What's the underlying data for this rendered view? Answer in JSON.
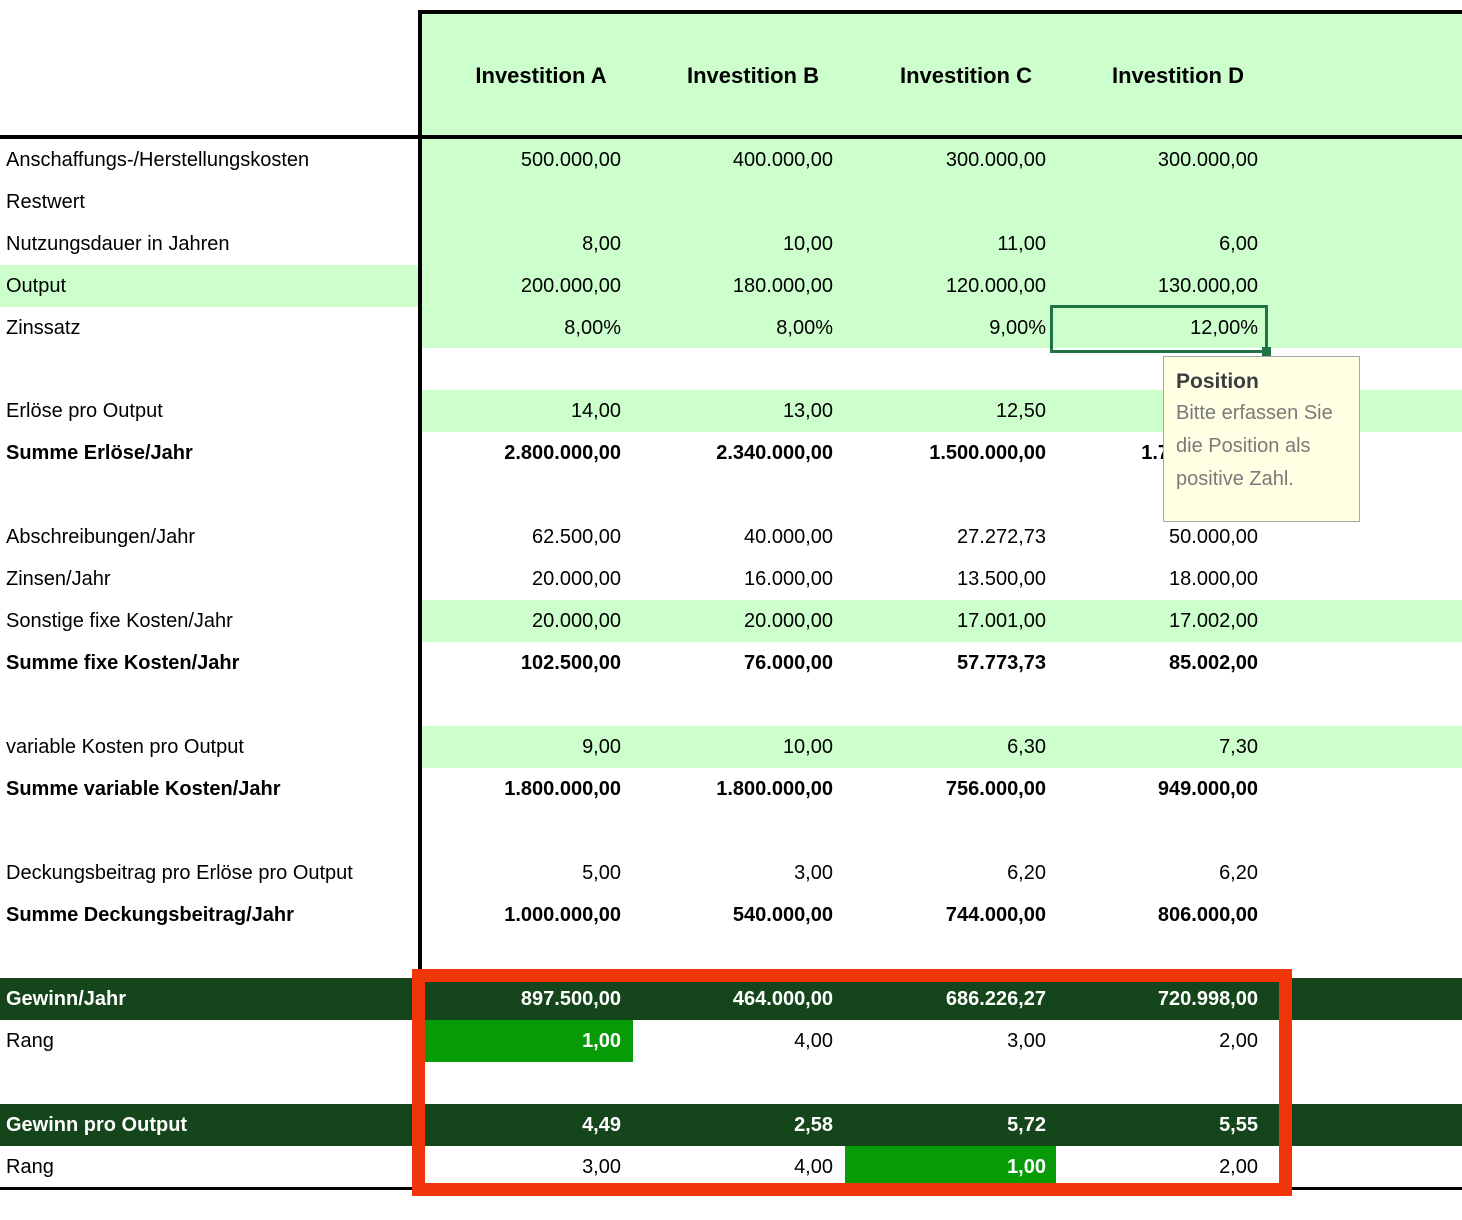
{
  "header": {
    "columns": [
      "Investition A",
      "Investition B",
      "Investition C",
      "Investition D"
    ]
  },
  "rows": [
    {
      "label": "Anschaffungs-/Herstellungskosten",
      "values": [
        "500.000,00",
        "400.000,00",
        "300.000,00",
        "300.000,00"
      ]
    },
    {
      "label": "Restwert",
      "values": [
        "",
        "",
        "",
        ""
      ]
    },
    {
      "label": "Nutzungsdauer in Jahren",
      "values": [
        "8,00",
        "10,00",
        "11,00",
        "6,00"
      ]
    },
    {
      "label": "Output",
      "values": [
        "200.000,00",
        "180.000,00",
        "120.000,00",
        "130.000,00"
      ]
    },
    {
      "label": "Zinssatz",
      "values": [
        "8,00%",
        "8,00%",
        "9,00%",
        "12,00%"
      ]
    },
    {
      "label": "Erlöse pro Output",
      "values": [
        "14,00",
        "13,00",
        "12,50",
        ""
      ]
    },
    {
      "label": "Summe Erlöse/Jahr",
      "values": [
        "2.800.000,00",
        "2.340.000,00",
        "1.500.000,00",
        "1.755.000,00"
      ]
    },
    {
      "label": "Abschreibungen/Jahr",
      "values": [
        "62.500,00",
        "40.000,00",
        "27.272,73",
        "50.000,00"
      ]
    },
    {
      "label": "Zinsen/Jahr",
      "values": [
        "20.000,00",
        "16.000,00",
        "13.500,00",
        "18.000,00"
      ]
    },
    {
      "label": "Sonstige fixe Kosten/Jahr",
      "values": [
        "20.000,00",
        "20.000,00",
        "17.001,00",
        "17.002,00"
      ]
    },
    {
      "label": "Summe fixe Kosten/Jahr",
      "values": [
        "102.500,00",
        "76.000,00",
        "57.773,73",
        "85.002,00"
      ]
    },
    {
      "label": "variable Kosten pro Output",
      "values": [
        "9,00",
        "10,00",
        "6,30",
        "7,30"
      ]
    },
    {
      "label": "Summe variable Kosten/Jahr",
      "values": [
        "1.800.000,00",
        "1.800.000,00",
        "756.000,00",
        "949.000,00"
      ]
    },
    {
      "label": "Deckungsbeitrag pro Erlöse pro Output",
      "values": [
        "5,00",
        "3,00",
        "6,20",
        "6,20"
      ]
    },
    {
      "label": "Summe Deckungsbeitrag/Jahr",
      "values": [
        "1.000.000,00",
        "540.000,00",
        "744.000,00",
        "806.000,00"
      ]
    },
    {
      "label": "Gewinn/Jahr",
      "values": [
        "897.500,00",
        "464.000,00",
        "686.226,27",
        "720.998,00"
      ]
    },
    {
      "label": "Rang",
      "values": [
        "1,00",
        "4,00",
        "3,00",
        "2,00"
      ]
    },
    {
      "label": "Gewinn pro Output",
      "values": [
        "4,49",
        "2,58",
        "5,72",
        "5,55"
      ]
    },
    {
      "label": "Rang",
      "values": [
        "3,00",
        "4,00",
        "1,00",
        "2,00"
      ]
    }
  ],
  "selection": {
    "row": "Zinssatz",
    "column": "Investition D",
    "value": "12,00%"
  },
  "tooltip": {
    "title": "Position",
    "lines": [
      "Bitte erfassen Sie",
      "die Position als",
      "positive Zahl."
    ]
  },
  "rank_highlights": [
    {
      "row_label": "Rang",
      "section": "Gewinn/Jahr",
      "column": "Investition A",
      "value": "1,00"
    },
    {
      "row_label": "Rang",
      "section": "Gewinn pro Output",
      "column": "Investition C",
      "value": "1,00"
    }
  ],
  "colors": {
    "light_green": "#ccffcc",
    "dark_green_band": "#15451a",
    "rank_highlight_green": "#089b08",
    "selection_border_green": "#217346",
    "annotation_red": "#f1350a",
    "tooltip_background": "#ffffe3"
  }
}
